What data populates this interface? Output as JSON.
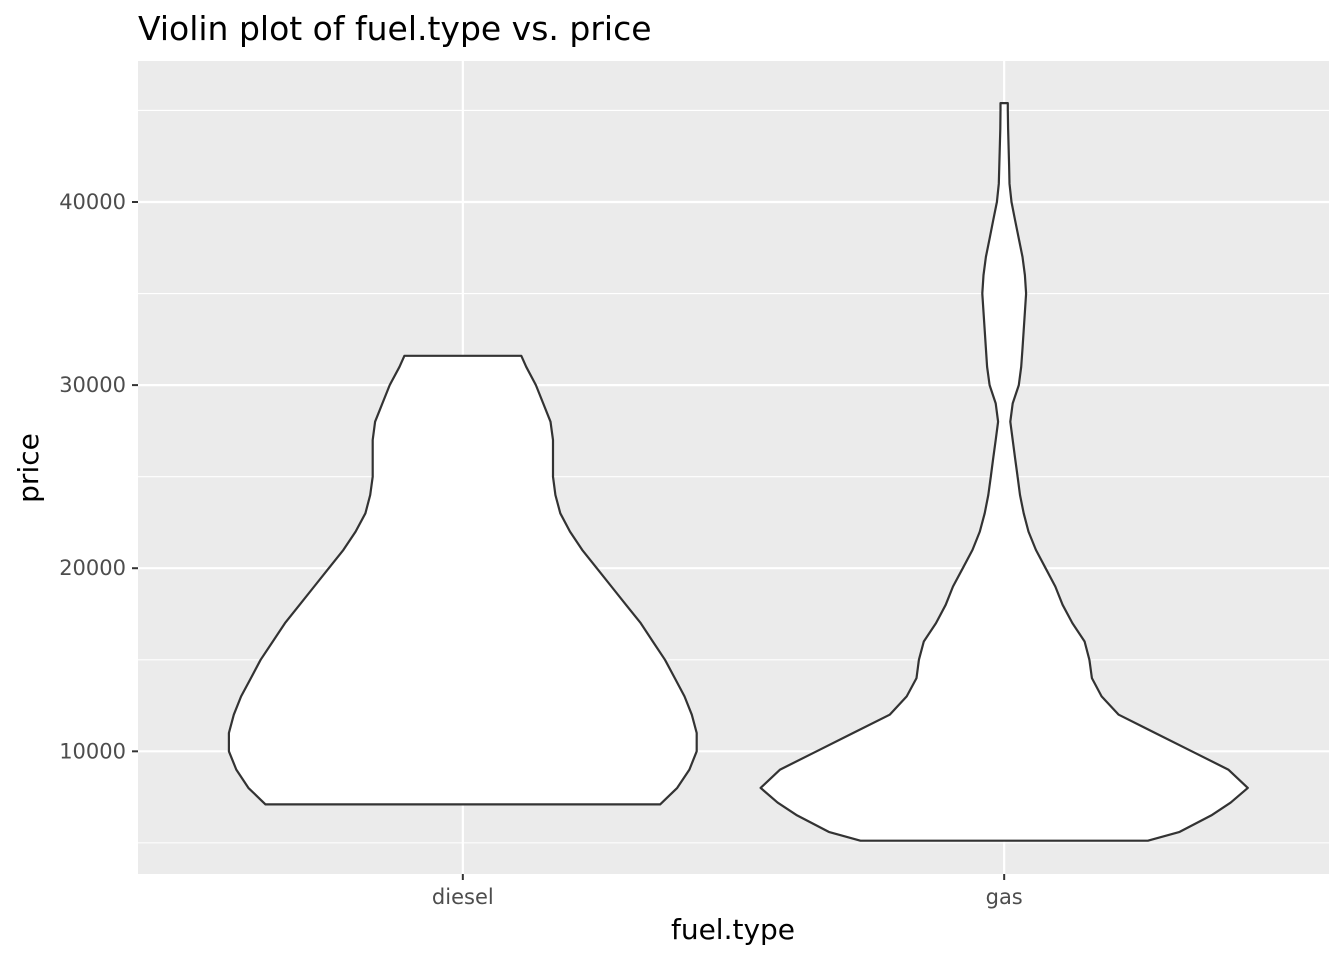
{
  "chart_data": {
    "type": "violin",
    "title": "Violin plot of fuel.type vs. price",
    "xlabel": "fuel.type",
    "ylabel": "price",
    "categories": [
      "diesel",
      "gas"
    ],
    "ylim": [
      3300,
      47700
    ],
    "yticks": [
      10000,
      20000,
      30000,
      40000
    ],
    "grid": true,
    "legend": "none",
    "colors": {
      "panel": "#ebebeb",
      "grid": "#ffffff",
      "fill": "#ffffff",
      "outline": "#333333",
      "tick_text": "#4d4d4d"
    },
    "series": [
      {
        "category": "diesel",
        "min": 7099,
        "max": 31600,
        "density": [
          [
            7099,
            0.81
          ],
          [
            8000,
            0.88
          ],
          [
            9000,
            0.93
          ],
          [
            10000,
            0.96
          ],
          [
            11000,
            0.96
          ],
          [
            12000,
            0.94
          ],
          [
            13000,
            0.91
          ],
          [
            14000,
            0.87
          ],
          [
            15000,
            0.83
          ],
          [
            16000,
            0.78
          ],
          [
            17000,
            0.73
          ],
          [
            18000,
            0.67
          ],
          [
            19000,
            0.61
          ],
          [
            20000,
            0.55
          ],
          [
            21000,
            0.49
          ],
          [
            22000,
            0.44
          ],
          [
            23000,
            0.4
          ],
          [
            24000,
            0.38
          ],
          [
            25000,
            0.37
          ],
          [
            26000,
            0.37
          ],
          [
            27000,
            0.37
          ],
          [
            28000,
            0.36
          ],
          [
            29000,
            0.33
          ],
          [
            30000,
            0.3
          ],
          [
            31000,
            0.26
          ],
          [
            31600,
            0.24
          ]
        ]
      },
      {
        "category": "gas",
        "min": 5118,
        "max": 45400,
        "density": [
          [
            5118,
            0.59
          ],
          [
            5600,
            0.72
          ],
          [
            6500,
            0.85
          ],
          [
            7200,
            0.93
          ],
          [
            8000,
            1.0
          ],
          [
            9000,
            0.92
          ],
          [
            10000,
            0.77
          ],
          [
            11000,
            0.62
          ],
          [
            12000,
            0.47
          ],
          [
            13000,
            0.4
          ],
          [
            14000,
            0.36
          ],
          [
            15000,
            0.35
          ],
          [
            16000,
            0.33
          ],
          [
            17000,
            0.28
          ],
          [
            18000,
            0.24
          ],
          [
            19000,
            0.21
          ],
          [
            20000,
            0.17
          ],
          [
            21000,
            0.13
          ],
          [
            22000,
            0.1
          ],
          [
            23000,
            0.08
          ],
          [
            24000,
            0.065
          ],
          [
            25000,
            0.055
          ],
          [
            26000,
            0.045
          ],
          [
            27000,
            0.035
          ],
          [
            28000,
            0.025
          ],
          [
            29000,
            0.035
          ],
          [
            30000,
            0.06
          ],
          [
            31000,
            0.07
          ],
          [
            32000,
            0.075
          ],
          [
            33000,
            0.08
          ],
          [
            34000,
            0.085
          ],
          [
            35000,
            0.09
          ],
          [
            36000,
            0.085
          ],
          [
            37000,
            0.075
          ],
          [
            38000,
            0.06
          ],
          [
            39000,
            0.045
          ],
          [
            40000,
            0.03
          ],
          [
            41000,
            0.022
          ],
          [
            42000,
            0.02
          ],
          [
            43000,
            0.018
          ],
          [
            44000,
            0.016
          ],
          [
            45000,
            0.015
          ],
          [
            45400,
            0.015
          ]
        ]
      }
    ]
  }
}
